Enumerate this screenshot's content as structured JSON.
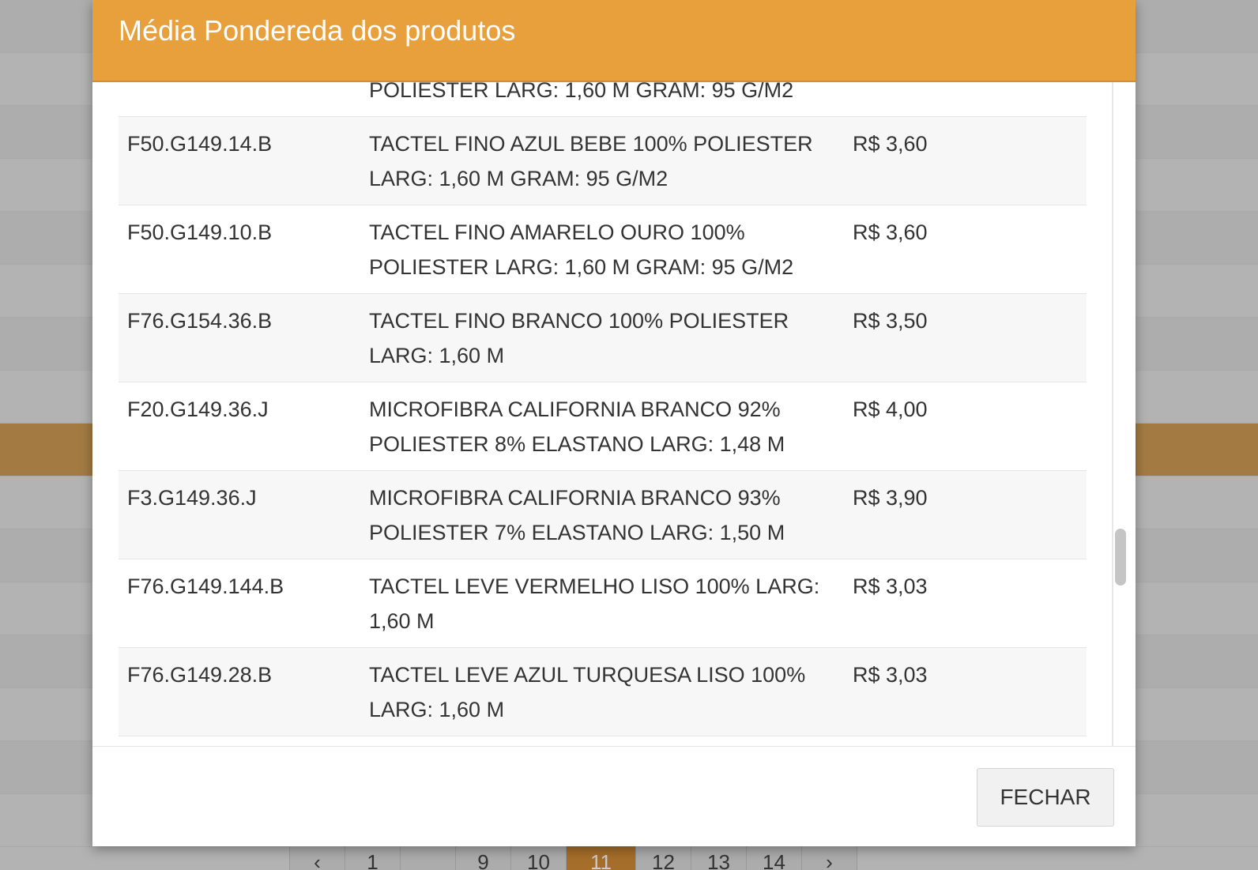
{
  "modal": {
    "title": "Média Pondereda dos produtos",
    "close_label": "FECHAR"
  },
  "partial_row": {
    "desc_line2": "POLIESTER LARG: 1,60 M GRAM: 95 G/M2"
  },
  "rows": [
    {
      "code": "F50.G149.14.B",
      "description": "TACTEL FINO AZUL BEBE 100% POLIESTER LARG: 1,60 M GRAM: 95 G/M2",
      "price": "R$ 3,60"
    },
    {
      "code": "F50.G149.10.B",
      "description": "TACTEL FINO AMARELO OURO 100% POLIESTER LARG: 1,60 M GRAM: 95 G/M2",
      "price": "R$ 3,60"
    },
    {
      "code": "F76.G154.36.B",
      "description": "TACTEL FINO BRANCO 100% POLIESTER LARG: 1,60 M",
      "price": "R$ 3,50"
    },
    {
      "code": "F20.G149.36.J",
      "description": "MICROFIBRA CALIFORNIA BRANCO 92% POLIESTER 8% ELASTANO LARG: 1,48 M",
      "price": "R$ 4,00"
    },
    {
      "code": "F3.G149.36.J",
      "description": "MICROFIBRA CALIFORNIA BRANCO 93% POLIESTER 7% ELASTANO LARG: 1,50 M",
      "price": "R$ 3,90"
    },
    {
      "code": "F76.G149.144.B",
      "description": "TACTEL LEVE VERMELHO LISO 100% LARG: 1,60 M",
      "price": "R$ 3,03"
    },
    {
      "code": "F76.G149.28.B",
      "description": "TACTEL LEVE AZUL TURQUESA LISO 100% LARG: 1,60 M",
      "price": "R$ 3,03"
    }
  ],
  "pagination": {
    "prev": "‹",
    "pages": [
      "1",
      "",
      "9",
      "10",
      "11",
      "12",
      "13",
      "14"
    ],
    "current": "11",
    "next": "›"
  },
  "colors": {
    "header": "#e8a03c",
    "active_row": "#a37b42"
  }
}
